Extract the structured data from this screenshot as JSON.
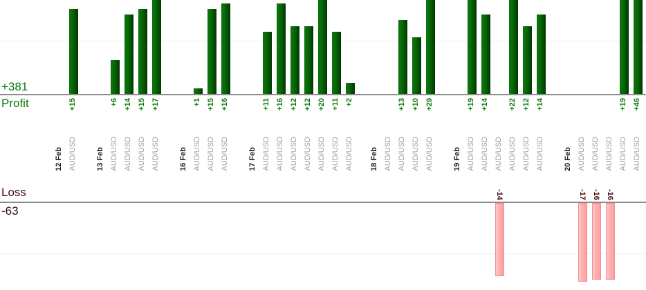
{
  "colors": {
    "profit_text_green": "#067806",
    "bar_green_light": "#0c730c",
    "bar_green_dark": "#013701",
    "loss_text_maroon": "#3f0808",
    "loss_value_maroon": "#4a0d0d",
    "loss_bar_pink": "#ffb0b0",
    "loss_bar_border": "#ec9393",
    "date_text": "#1b1b1b",
    "symbol_text": "#9f9f9f",
    "axis_line": "#8c8c8c",
    "gridline": "#ededed"
  },
  "chart_data": {
    "type": "bar",
    "layout": "split axis: profit bars grow up from upper baseline, loss bars grow down from lower baseline; all category and value labels rotated 90 degrees",
    "axis_labels": {
      "profit": "Profit",
      "loss": "Loss"
    },
    "totals": {
      "profit": 381,
      "profit_label": "+381",
      "loss": -63,
      "loss_label": "-63"
    },
    "groups": [
      {
        "date": "12 Feb",
        "trades": [
          {
            "symbol": "AUD/USD",
            "value": 15,
            "label": "+15"
          }
        ]
      },
      {
        "date": "13 Feb",
        "trades": [
          {
            "symbol": "AUD/USD",
            "value": 6,
            "label": "+6"
          },
          {
            "symbol": "AUD/USD",
            "value": 14,
            "label": "+14"
          },
          {
            "symbol": "AUD/USD",
            "value": 15,
            "label": "+15"
          },
          {
            "symbol": "AUD/USD",
            "value": 17,
            "label": "+17"
          }
        ]
      },
      {
        "date": "16 Feb",
        "trades": [
          {
            "symbol": "AUD/USD",
            "value": 1,
            "label": "+1"
          },
          {
            "symbol": "AUD/USD",
            "value": 15,
            "label": "+15"
          },
          {
            "symbol": "AUD/USD",
            "value": 16,
            "label": "+16"
          }
        ]
      },
      {
        "date": "17 Feb",
        "trades": [
          {
            "symbol": "AUD/USD",
            "value": 11,
            "label": "+11"
          },
          {
            "symbol": "AUD/USD",
            "value": 16,
            "label": "+16"
          },
          {
            "symbol": "AUD/USD",
            "value": 12,
            "label": "+12"
          },
          {
            "symbol": "AUD/USD",
            "value": 12,
            "label": "+12"
          },
          {
            "symbol": "AUD/USD",
            "value": 20,
            "label": "+20"
          },
          {
            "symbol": "AUD/USD",
            "value": 11,
            "label": "+11"
          },
          {
            "symbol": "AUD/USD",
            "value": 2,
            "label": "+2"
          }
        ]
      },
      {
        "date": "18 Feb",
        "trades": [
          {
            "symbol": "AUD/USD",
            "value": null,
            "label": null
          },
          {
            "symbol": "AUD/USD",
            "value": 13,
            "label": "+13"
          },
          {
            "symbol": "AUD/USD",
            "value": 10,
            "label": "+10"
          },
          {
            "symbol": "AUD/USD",
            "value": 29,
            "label": "+29"
          }
        ]
      },
      {
        "date": "19 Feb",
        "trades": [
          {
            "symbol": "AUD/USD",
            "value": 19,
            "label": "+19"
          },
          {
            "symbol": "AUD/USD",
            "value": 14,
            "label": "+14"
          },
          {
            "symbol": "AUD/USD",
            "value": -14,
            "label": "-14"
          },
          {
            "symbol": "AUD/USD",
            "value": 22,
            "label": "+22"
          },
          {
            "symbol": "AUD/USD",
            "value": 12,
            "label": "+12"
          },
          {
            "symbol": "AUD/USD",
            "value": 14,
            "label": "+14"
          }
        ]
      },
      {
        "date": "20 Feb",
        "trades": [
          {
            "symbol": "AUD/USD",
            "value": -17,
            "label": "-17"
          },
          {
            "symbol": "AUD/USD",
            "value": -16,
            "label": "-16"
          },
          {
            "symbol": "AUD/USD",
            "value": -16,
            "label": "-16"
          },
          {
            "symbol": "AUD/USD",
            "value": 19,
            "label": "+19"
          },
          {
            "symbol": "AUD/USD",
            "value": 46,
            "label": "+46"
          }
        ]
      }
    ]
  }
}
